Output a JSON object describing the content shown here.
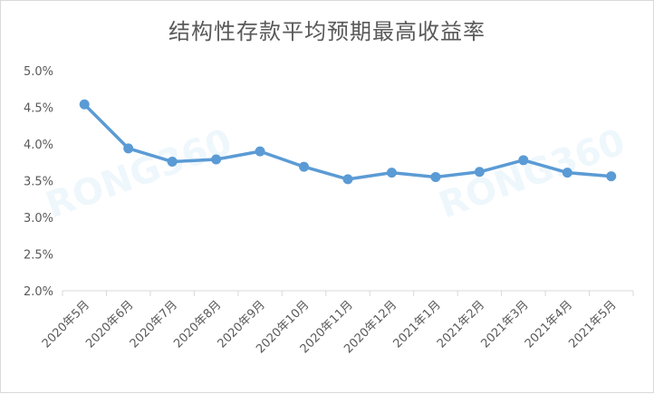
{
  "chart_data": {
    "type": "line",
    "title": "结构性存款平均预期最高收益率",
    "categories": [
      "2020年5月",
      "2020年6月",
      "2020年7月",
      "2020年8月",
      "2020年9月",
      "2020年10月",
      "2020年11月",
      "2020年12月",
      "2021年1月",
      "2021年2月",
      "2021年3月",
      "2021年4月",
      "2021年5月"
    ],
    "series": [
      {
        "values": [
          4.54,
          3.94,
          3.76,
          3.79,
          3.9,
          3.69,
          3.52,
          3.61,
          3.55,
          3.62,
          3.78,
          3.61,
          3.56
        ]
      }
    ],
    "y_ticks": [
      "2.0%",
      "2.5%",
      "3.0%",
      "3.5%",
      "4.0%",
      "4.5%",
      "5.0%"
    ],
    "ylim": [
      2.0,
      5.0
    ],
    "ystep": 0.5,
    "grid": false,
    "legend": "none",
    "line_color": "#5b9bd5",
    "axis_color": "#d9d9d9"
  },
  "watermark": "RONG360"
}
